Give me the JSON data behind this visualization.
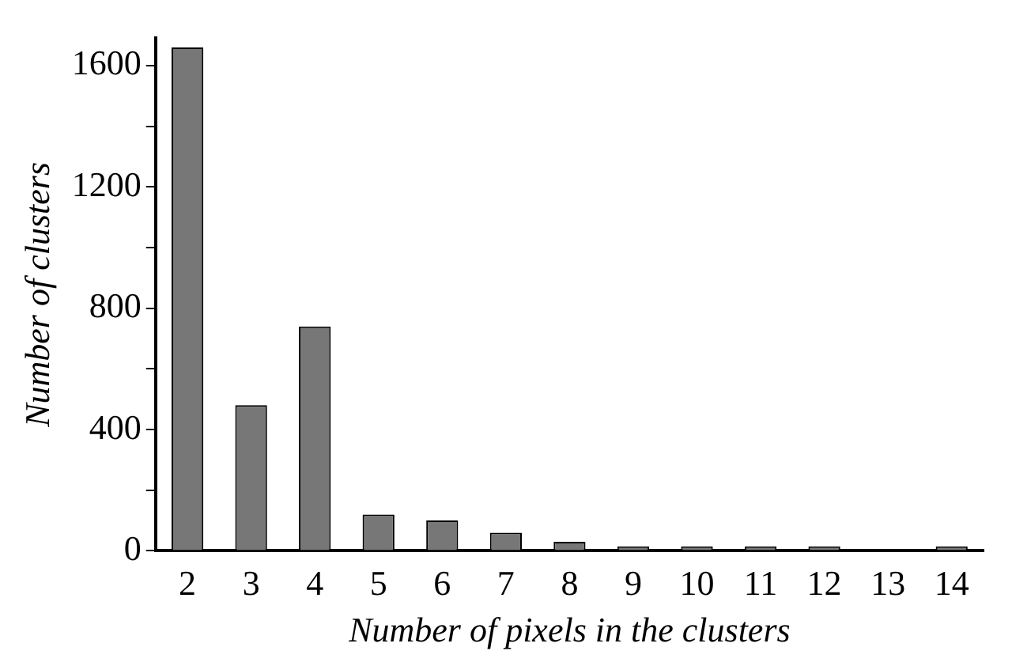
{
  "chart_data": {
    "type": "bar",
    "xlabel": "Number of pixels in the clusters",
    "ylabel": "Number of clusters",
    "categories": [
      "2",
      "3",
      "4",
      "5",
      "6",
      "7",
      "8",
      "9",
      "10",
      "11",
      "12",
      "13",
      "14"
    ],
    "values": [
      1660,
      480,
      740,
      120,
      100,
      60,
      30,
      15,
      15,
      15,
      15,
      0,
      15
    ],
    "color": "#777777",
    "ylim": [
      0,
      1690
    ],
    "yticks": [
      0,
      {
        "value": 200,
        "label": null
      },
      400,
      {
        "value": 600,
        "label": null
      },
      800,
      {
        "value": 1000,
        "label": null
      },
      1200,
      {
        "value": 1400,
        "label": null
      },
      1600
    ],
    "grid": false
  }
}
